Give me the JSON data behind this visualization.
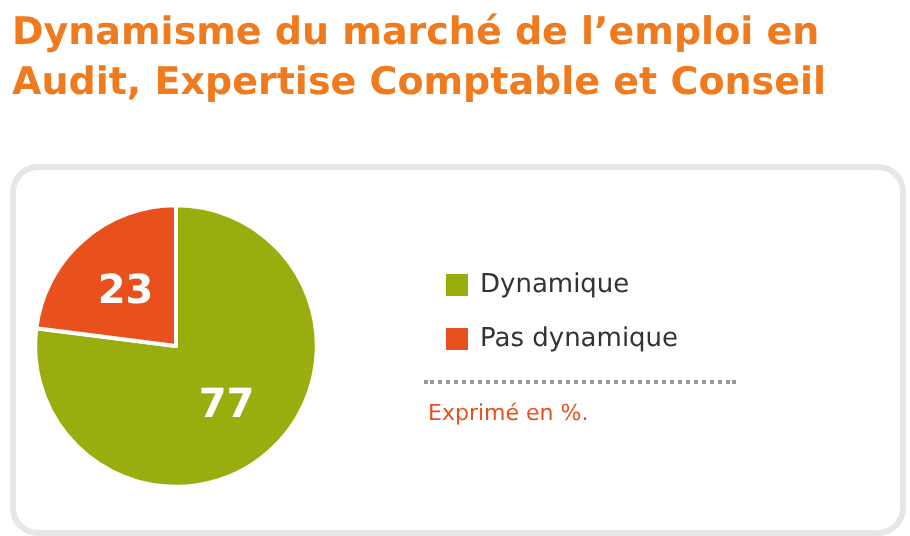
{
  "chart_data": {
    "type": "pie",
    "title": "Dynamisme du marché de l’emploi en Audit, Expertise Comptable et Conseil",
    "categories": [
      "Dynamique",
      "Pas dynamique"
    ],
    "values": [
      77,
      23
    ],
    "colors": [
      "#9aad0f",
      "#e8501e"
    ],
    "data_labels": true,
    "legend": "right",
    "annotations": [
      "Exprimé en %."
    ]
  }
}
